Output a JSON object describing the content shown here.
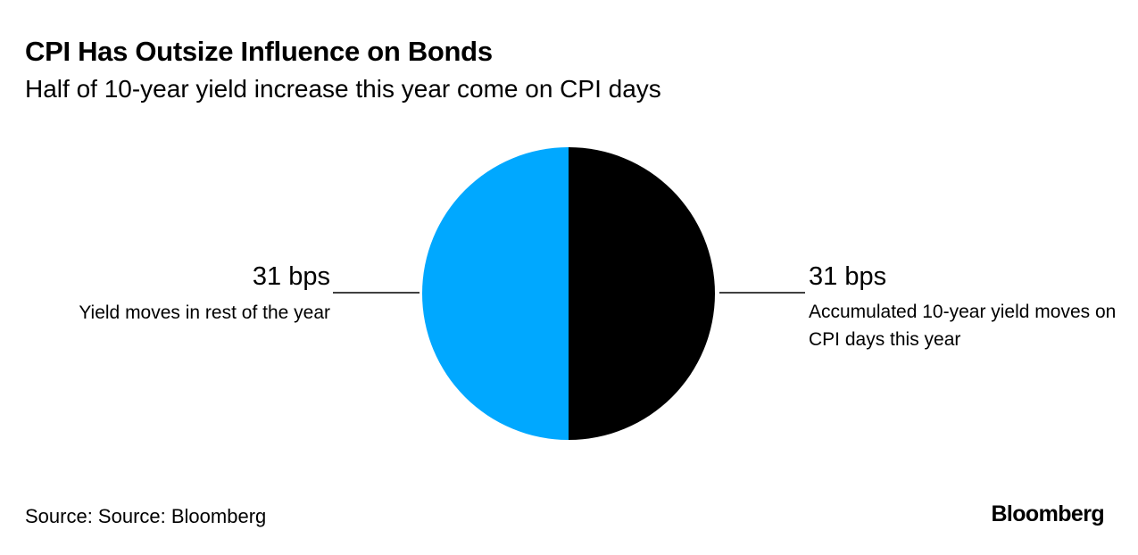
{
  "header": {
    "title": "CPI Has Outsize Influence on Bonds",
    "subtitle": "Half of 10-year yield increase this year come on CPI days"
  },
  "chart_data": {
    "type": "pie",
    "title": "CPI Has Outsize Influence on Bonds",
    "subtitle": "Half of 10-year yield increase this year come on CPI days",
    "unit": "bps",
    "slices": [
      {
        "name": "Accumulated 10-year yield moves on CPI days this year",
        "value": 31,
        "value_label": "31 bps",
        "color": "#000000"
      },
      {
        "name": "Yield moves in rest of the year",
        "value": 31,
        "value_label": "31 bps",
        "color": "#00a8ff"
      }
    ]
  },
  "labels": {
    "left_value": "31 bps",
    "left_desc": "Yield moves in rest of the year",
    "right_value": "31 bps",
    "right_desc": "Accumulated 10-year yield moves on CPI days this year"
  },
  "footer": {
    "source": "Source: Source: Bloomberg",
    "logo": "Bloomberg"
  },
  "colors": {
    "cpi_days": "#000000",
    "rest_of_year": "#00a8ff",
    "background": "#ffffff"
  }
}
